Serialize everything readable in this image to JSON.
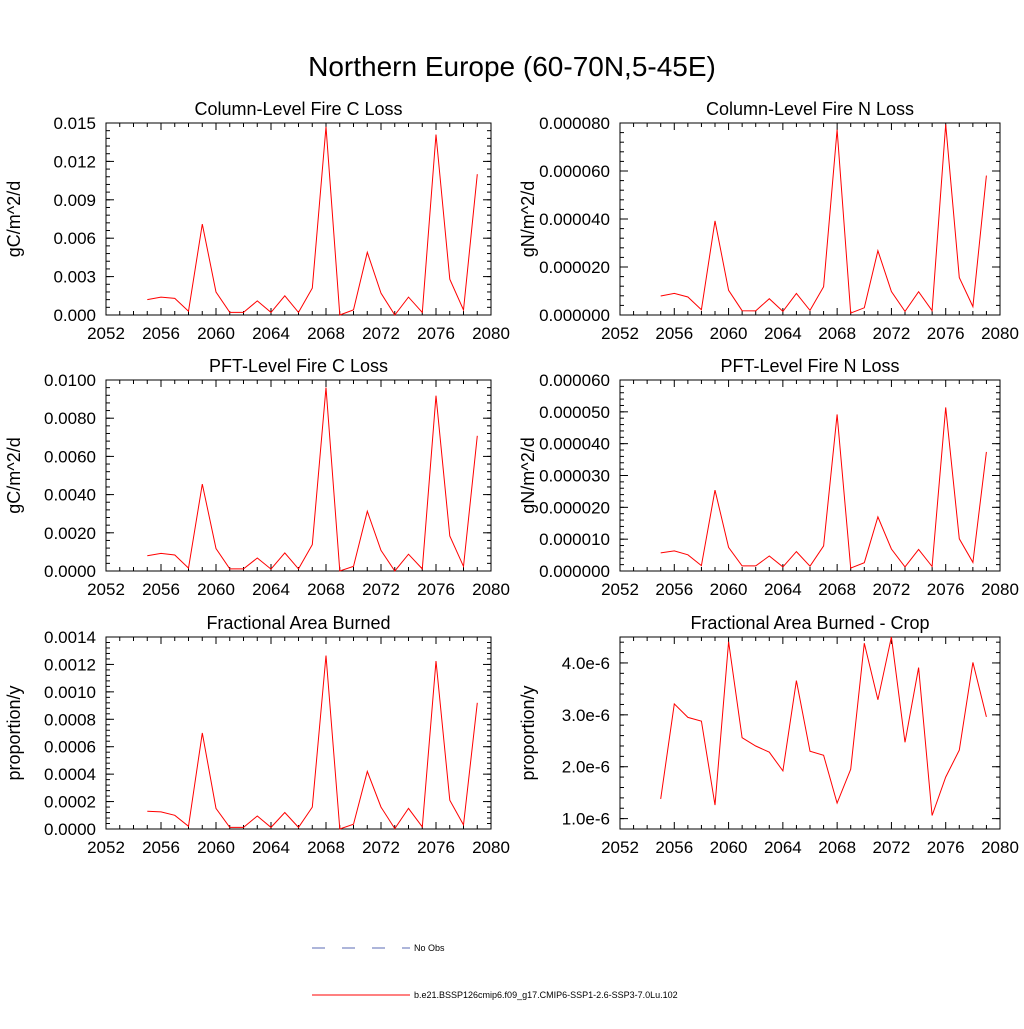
{
  "figure": {
    "title": "Northern Europe (60-70N,5-45E)"
  },
  "legend": {
    "entries": [
      {
        "label": "No Obs",
        "color": "#5b6bb5",
        "dash": true
      },
      {
        "label": "b.e21.BSSP126cmip6.f09_g17.CMIP6-SSP1-2.6-SSP3-7.0Lu.102",
        "color": "#ff0000",
        "dash": false
      }
    ],
    "placement": "bottom-center"
  },
  "chart_data": [
    {
      "type": "line",
      "title": "Column-Level Fire C Loss",
      "ylabel": "gC/m^2/d",
      "xlim": [
        2052,
        2080
      ],
      "ylim": [
        0,
        0.015
      ],
      "x_ticks": [
        "2052",
        "2056",
        "2060",
        "2064",
        "2068",
        "2072",
        "2076",
        "2080"
      ],
      "y_ticks": [
        0,
        0.003,
        0.006,
        0.009,
        0.012,
        0.015
      ],
      "y_tick_labels": [
        "0.000",
        "0.003",
        "0.006",
        "0.009",
        "0.012",
        "0.015"
      ],
      "x": [
        2055,
        2056,
        2057,
        2058,
        2059,
        2060,
        2061,
        2062,
        2063,
        2064,
        2065,
        2066,
        2067,
        2068,
        2069,
        2070,
        2071,
        2072,
        2073,
        2074,
        2075,
        2076,
        2077,
        2078,
        2079
      ],
      "series": [
        {
          "color": "#ff0000",
          "values": [
            0.0012,
            0.0014,
            0.0013,
            0.0003,
            0.0071,
            0.0018,
            0.0002,
            0.0002,
            0.0011,
            0.0002,
            0.0015,
            0.0002,
            0.0021,
            0.0147,
            0.0,
            0.0004,
            0.0049,
            0.0017,
            0.0,
            0.0014,
            0.0002,
            0.0141,
            0.0028,
            0.0004,
            0.011
          ]
        }
      ]
    },
    {
      "type": "line",
      "title": "Column-Level Fire N Loss",
      "ylabel": "gN/m^2/d",
      "xlim": [
        2052,
        2080
      ],
      "ylim": [
        0,
        8e-05
      ],
      "x_ticks": [
        "2052",
        "2056",
        "2060",
        "2064",
        "2068",
        "2072",
        "2076",
        "2080"
      ],
      "y_ticks": [
        0,
        2e-05,
        4e-05,
        6e-05,
        8e-05
      ],
      "y_tick_labels": [
        "0.000000",
        "0.000020",
        "0.000040",
        "0.000060",
        "0.000080"
      ],
      "x": [
        2055,
        2056,
        2057,
        2058,
        2059,
        2060,
        2061,
        2062,
        2063,
        2064,
        2065,
        2066,
        2067,
        2068,
        2069,
        2070,
        2071,
        2072,
        2073,
        2074,
        2075,
        2076,
        2077,
        2078,
        2079
      ],
      "series": [
        {
          "color": "#ff0000",
          "values": [
            7.9e-06,
            9e-06,
            7.5e-06,
            2.2e-06,
            3.92e-05,
            1.03e-05,
            1.8e-06,
            1.7e-06,
            6.8e-06,
            1.5e-06,
            9e-06,
            1.9e-06,
            1.18e-05,
            7.72e-05,
            8e-07,
            3e-06,
            2.68e-05,
            9.8e-06,
            1.5e-06,
            9.7e-06,
            1.8e-06,
            7.94e-05,
            1.56e-05,
            3.5e-06,
            5.81e-05
          ]
        }
      ]
    },
    {
      "type": "line",
      "title": "PFT-Level Fire C Loss",
      "ylabel": "gC/m^2/d",
      "xlim": [
        2052,
        2080
      ],
      "ylim": [
        0,
        0.01
      ],
      "x_ticks": [
        "2052",
        "2056",
        "2060",
        "2064",
        "2068",
        "2072",
        "2076",
        "2080"
      ],
      "y_ticks": [
        0,
        0.002,
        0.004,
        0.006,
        0.008,
        0.01
      ],
      "y_tick_labels": [
        "0.0000",
        "0.0020",
        "0.0040",
        "0.0060",
        "0.0080",
        "0.0100"
      ],
      "x": [
        2055,
        2056,
        2057,
        2058,
        2059,
        2060,
        2061,
        2062,
        2063,
        2064,
        2065,
        2066,
        2067,
        2068,
        2069,
        2070,
        2071,
        2072,
        2073,
        2074,
        2075,
        2076,
        2077,
        2078,
        2079
      ],
      "series": [
        {
          "color": "#ff0000",
          "values": [
            0.0008,
            0.00092,
            0.00084,
            0.00015,
            0.00455,
            0.00118,
            0.00011,
            0.00011,
            0.00068,
            0.0001,
            0.00095,
            0.00011,
            0.00138,
            0.0096,
            0.0,
            0.00024,
            0.00313,
            0.00108,
            0.0,
            0.00088,
            0.00011,
            0.00918,
            0.00183,
            0.00024,
            0.00708
          ]
        }
      ]
    },
    {
      "type": "line",
      "title": "PFT-Level Fire N Loss",
      "ylabel": "gN/m^2/d",
      "xlim": [
        2052,
        2080
      ],
      "ylim": [
        0,
        6e-05
      ],
      "x_ticks": [
        "2052",
        "2056",
        "2060",
        "2064",
        "2068",
        "2072",
        "2076",
        "2080"
      ],
      "y_ticks": [
        0,
        1e-05,
        2e-05,
        3e-05,
        4e-05,
        5e-05,
        6e-05
      ],
      "y_tick_labels": [
        "0.000000",
        "0.000010",
        "0.000020",
        "0.000030",
        "0.000040",
        "0.000050",
        "0.000060"
      ],
      "x": [
        2055,
        2056,
        2057,
        2058,
        2059,
        2060,
        2061,
        2062,
        2063,
        2064,
        2065,
        2066,
        2067,
        2068,
        2069,
        2070,
        2071,
        2072,
        2073,
        2074,
        2075,
        2076,
        2077,
        2078,
        2079
      ],
      "series": [
        {
          "color": "#ff0000",
          "values": [
            5.7e-06,
            6.3e-06,
            5.1e-06,
            1.7e-06,
            2.54e-05,
            7.4e-06,
            1.6e-06,
            1.6e-06,
            4.7e-06,
            1.3e-06,
            6.1e-06,
            1.5e-06,
            7.9e-06,
            4.92e-05,
            9e-07,
            2.6e-06,
            1.7e-05,
            6.9e-06,
            1.3e-06,
            6.8e-06,
            1.4e-06,
            5.14e-05,
            1.01e-05,
            2.7e-06,
            3.74e-05
          ]
        }
      ]
    },
    {
      "type": "line",
      "title": "Fractional Area Burned",
      "ylabel": "proportion/y",
      "xlim": [
        2052,
        2080
      ],
      "ylim": [
        0,
        0.0014
      ],
      "x_ticks": [
        "2052",
        "2056",
        "2060",
        "2064",
        "2068",
        "2072",
        "2076",
        "2080"
      ],
      "y_ticks": [
        0,
        0.0002,
        0.0004,
        0.0006,
        0.0008,
        0.001,
        0.0012,
        0.0014
      ],
      "y_tick_labels": [
        "0.0000",
        "0.0002",
        "0.0004",
        "0.0006",
        "0.0008",
        "0.0010",
        "0.0012",
        "0.0014"
      ],
      "x": [
        2055,
        2056,
        2057,
        2058,
        2059,
        2060,
        2061,
        2062,
        2063,
        2064,
        2065,
        2066,
        2067,
        2068,
        2069,
        2070,
        2071,
        2072,
        2073,
        2074,
        2075,
        2076,
        2077,
        2078,
        2079
      ],
      "series": [
        {
          "color": "#ff0000",
          "values": [
            0.00013,
            0.000125,
            0.0001,
            2e-05,
            0.0007,
            0.00015,
            1.2e-05,
            1.2e-05,
            9.5e-05,
            1.2e-05,
            0.00012,
            1.2e-05,
            0.00016,
            0.001265,
            0.0,
            3.5e-05,
            0.00042,
            0.00016,
            3e-06,
            0.00015,
            1.5e-05,
            0.001225,
            0.00021,
            3e-05,
            0.00092
          ]
        }
      ]
    },
    {
      "type": "line",
      "title": "Fractional Area Burned - Crop",
      "ylabel": "proportion/y",
      "xlim": [
        2052,
        2080
      ],
      "ylim": [
        8e-07,
        4.5e-06
      ],
      "x_ticks": [
        "2052",
        "2056",
        "2060",
        "2064",
        "2068",
        "2072",
        "2076",
        "2080"
      ],
      "y_ticks": [
        1e-06,
        2e-06,
        3e-06,
        4e-06
      ],
      "y_tick_labels": [
        "1.0e-6",
        "2.0e-6",
        "3.0e-6",
        "4.0e-6"
      ],
      "x": [
        2055,
        2056,
        2057,
        2058,
        2059,
        2060,
        2061,
        2062,
        2063,
        2064,
        2065,
        2066,
        2067,
        2068,
        2069,
        2070,
        2071,
        2072,
        2073,
        2074,
        2075,
        2076,
        2077,
        2078,
        2079
      ],
      "series": [
        {
          "color": "#ff0000",
          "values": [
            1.38e-06,
            3.21e-06,
            2.95e-06,
            2.88e-06,
            1.26e-06,
            4.41e-06,
            2.56e-06,
            2.4e-06,
            2.28e-06,
            1.92e-06,
            3.66e-06,
            2.3e-06,
            2.22e-06,
            1.3e-06,
            1.95e-06,
            4.38e-06,
            3.29e-06,
            4.5e-06,
            2.47e-06,
            3.91e-06,
            1.06e-06,
            1.8e-06,
            2.32e-06,
            4.01e-06,
            2.96e-06
          ]
        }
      ]
    }
  ]
}
